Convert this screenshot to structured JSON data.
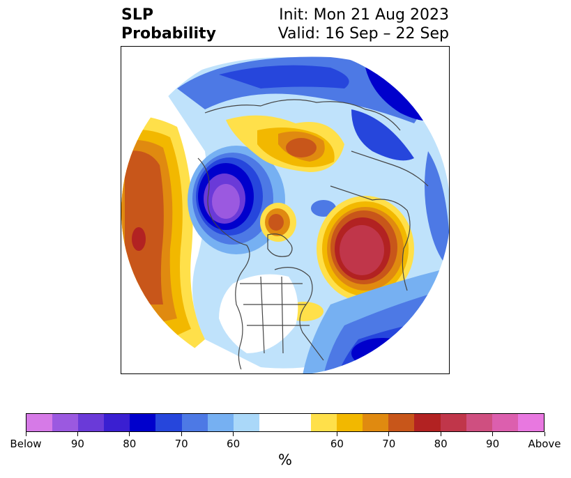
{
  "header": {
    "title_line1": "SLP",
    "title_line2": "Probability",
    "init": "Init: Mon 21 Aug 2023",
    "valid": "Valid: 16 Sep – 22 Sep"
  },
  "colorbar": {
    "colors": [
      "#d67ae7",
      "#9b59e0",
      "#6a3ad8",
      "#3a1fd1",
      "#0000cc",
      "#2646dc",
      "#4d79e5",
      "#76b0f2",
      "#aad8f9",
      "#ffffff",
      "#ffffff",
      "#ffe04a",
      "#f2b800",
      "#e08a10",
      "#c8561a",
      "#b22222",
      "#c0364a",
      "#cf4f80",
      "#dc5fae",
      "#e878e0"
    ],
    "labels": [
      "Below",
      "90",
      "80",
      "70",
      "60",
      "60",
      "70",
      "80",
      "90",
      "Above"
    ],
    "unit": "%"
  }
}
